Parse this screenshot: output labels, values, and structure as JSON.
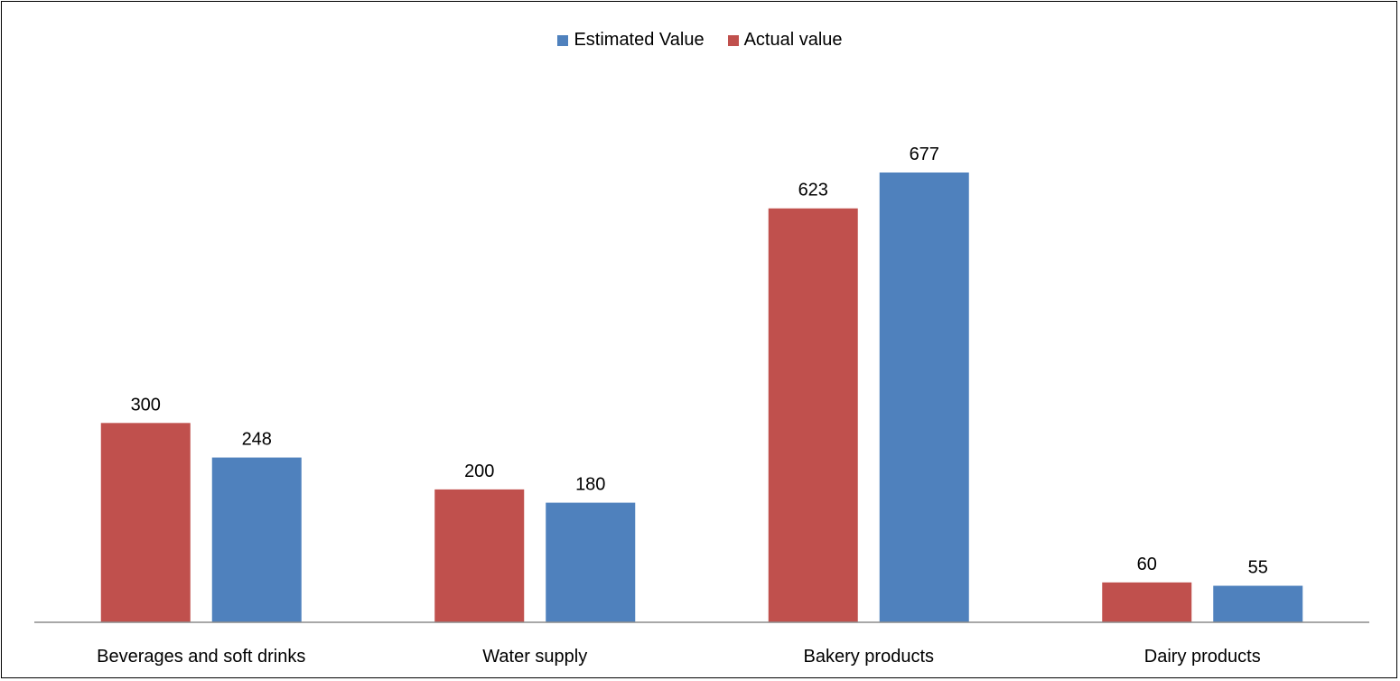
{
  "colors": {
    "estimated": "#4F81BD",
    "actual": "#C0504D",
    "axis": "#8C8C8C"
  },
  "legend": [
    {
      "label": "Estimated Value",
      "color": "#4F81BD"
    },
    {
      "label": "Actual value",
      "color": "#C0504D"
    }
  ],
  "chart_data": {
    "type": "bar",
    "title": "",
    "xlabel": "",
    "ylabel": "",
    "legend_position": "top",
    "grid": false,
    "ylim": [
      0,
      700
    ],
    "categories": [
      "Beverages and soft drinks",
      "Water supply",
      "Bakery products",
      "Dairy products"
    ],
    "series": [
      {
        "name": "Actual value",
        "values": [
          300,
          200,
          623,
          60
        ]
      },
      {
        "name": "Estimated Value",
        "values": [
          248,
          180,
          677,
          55
        ]
      }
    ]
  }
}
